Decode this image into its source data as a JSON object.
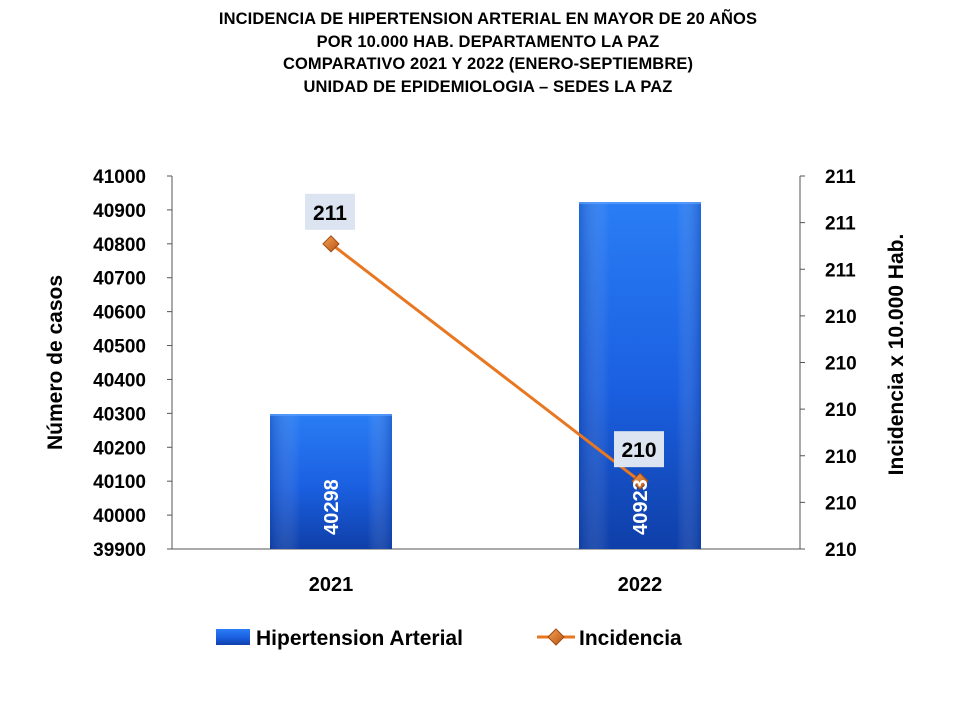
{
  "title_lines": [
    "INCIDENCIA DE HIPERTENSION ARTERIAL EN MAYOR DE 20 AÑOS",
    "POR 10.000 HAB. DEPARTAMENTO LA PAZ",
    "COMPARATIVO 2021 Y 2022 (ENERO-SEPTIEMBRE)",
    "UNIDAD DE EPIDEMIOLOGIA – SEDES LA PAZ"
  ],
  "chart_data": {
    "type": "bar",
    "categories": [
      "2021",
      "2022"
    ],
    "series": [
      {
        "name": "Hipertension Arterial",
        "type": "bar",
        "axis": "left",
        "values": [
          40298,
          40923
        ],
        "data_labels": [
          "40298",
          "40923"
        ],
        "color": "#1a5fe0"
      },
      {
        "name": "Incidencia",
        "type": "line",
        "axis": "right",
        "values": [
          210.9,
          210.2
        ],
        "data_labels": [
          "211",
          "210"
        ],
        "color": "#e87722"
      }
    ],
    "ylabel": "Número de casos",
    "y2label": "Incidencia x 10.000 Hab.",
    "ylim": [
      39900,
      41000
    ],
    "yticks": [
      "39900",
      "40000",
      "40100",
      "40200",
      "40300",
      "40400",
      "40500",
      "40600",
      "40700",
      "40800",
      "40900",
      "41000"
    ],
    "y2lim": [
      210,
      211.1
    ],
    "y2ticks": [
      "210",
      "210",
      "210",
      "210",
      "210",
      "210",
      "211",
      "211",
      "211"
    ],
    "grid": false,
    "legend_position": "bottom"
  }
}
